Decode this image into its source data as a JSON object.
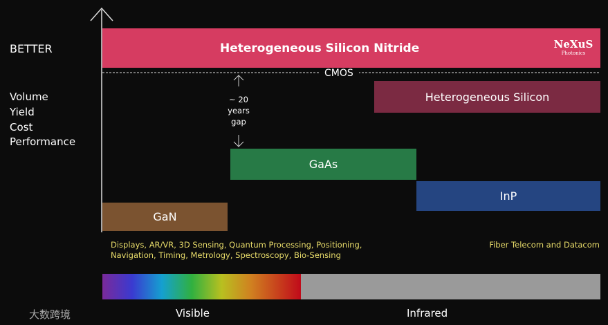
{
  "axis_label": "BETTER",
  "criteria": [
    "Volume",
    "Yield",
    "Cost",
    "Performance"
  ],
  "bars": [
    {
      "label": "Heterogeneous Silicon Nitride"
    },
    {
      "label": "Heterogeneous Silicon"
    },
    {
      "label": "GaAs"
    },
    {
      "label": "InP"
    },
    {
      "label": "GaN"
    }
  ],
  "logo": {
    "name": "NeXuS",
    "subtitle": "Photonics"
  },
  "cmos": "CMOS",
  "gap": [
    "~ 20",
    "years",
    "gap"
  ],
  "applications": {
    "left": [
      "Displays, AR/VR, 3D Sensing, Quantum Processing, Positioning,",
      "Navigation, Timing, Metrology, Spectroscopy, Bio-Sensing"
    ],
    "right": "Fiber Telecom and Datacom"
  },
  "spectrum": {
    "visible": "Visible",
    "infrared": "Infrared"
  },
  "watermark": "大数跨境"
}
